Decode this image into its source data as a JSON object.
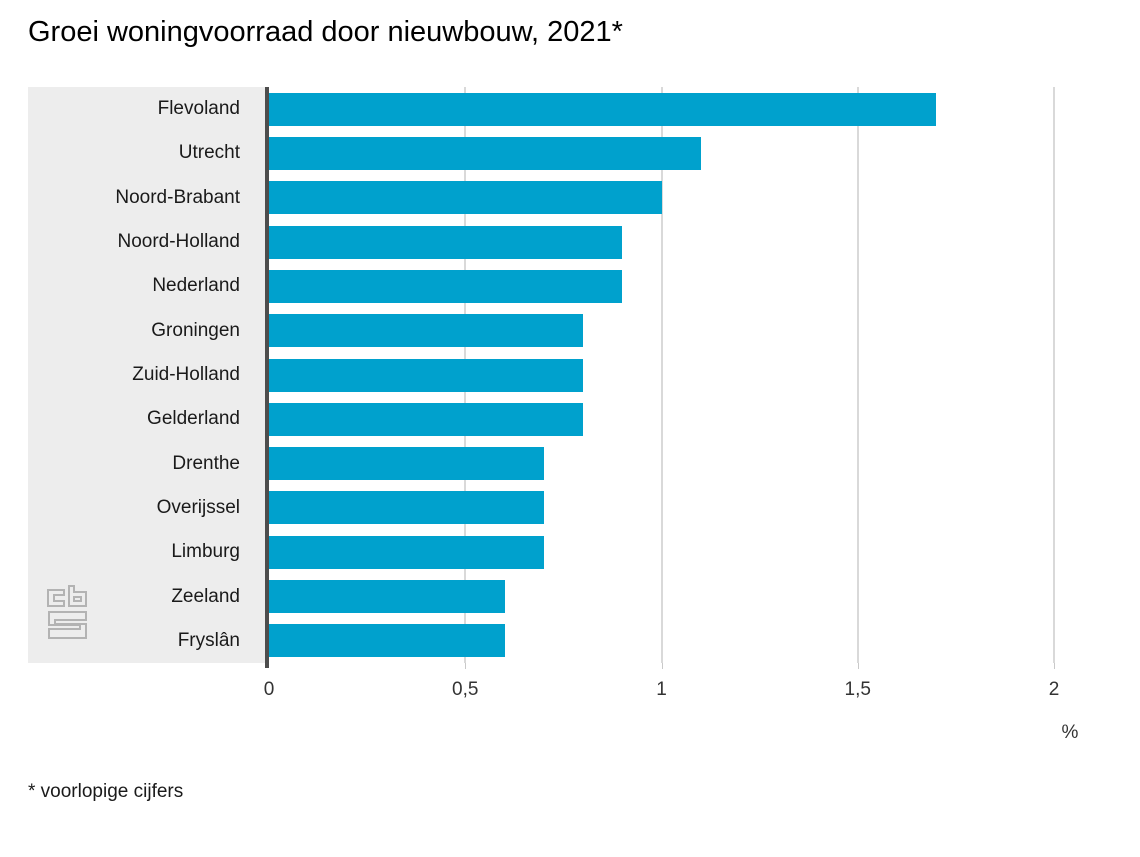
{
  "title": "Groei woningvoorraad door nieuwbouw, 2021*",
  "footnote": "* voorlopige cijfers",
  "colors": {
    "bar": "#00a1cd",
    "panel": "#ededed",
    "axis": "#4d4d4d",
    "grid": "#d9d9d9",
    "logo": "#b3b3b3"
  },
  "chart_data": {
    "type": "bar",
    "orientation": "horizontal",
    "title": "Groei woningvoorraad door nieuwbouw, 2021*",
    "categories": [
      "Flevoland",
      "Utrecht",
      "Noord-Brabant",
      "Noord-Holland",
      "Nederland",
      "Groningen",
      "Zuid-Holland",
      "Gelderland",
      "Drenthe",
      "Overijssel",
      "Limburg",
      "Zeeland",
      "Fryslân"
    ],
    "values": [
      1.7,
      1.1,
      1.0,
      0.9,
      0.9,
      0.8,
      0.8,
      0.8,
      0.7,
      0.7,
      0.7,
      0.6,
      0.6
    ],
    "xlabel": "%",
    "ylabel": "",
    "xlim": [
      0,
      2
    ],
    "x_ticks": [
      {
        "value": 0,
        "label": "0"
      },
      {
        "value": 0.5,
        "label": "0,5"
      },
      {
        "value": 1,
        "label": "1"
      },
      {
        "value": 1.5,
        "label": "1,5"
      },
      {
        "value": 2,
        "label": "2"
      }
    ],
    "grid": "vertical",
    "legend": "none",
    "bar_color": "#00a1cd"
  }
}
